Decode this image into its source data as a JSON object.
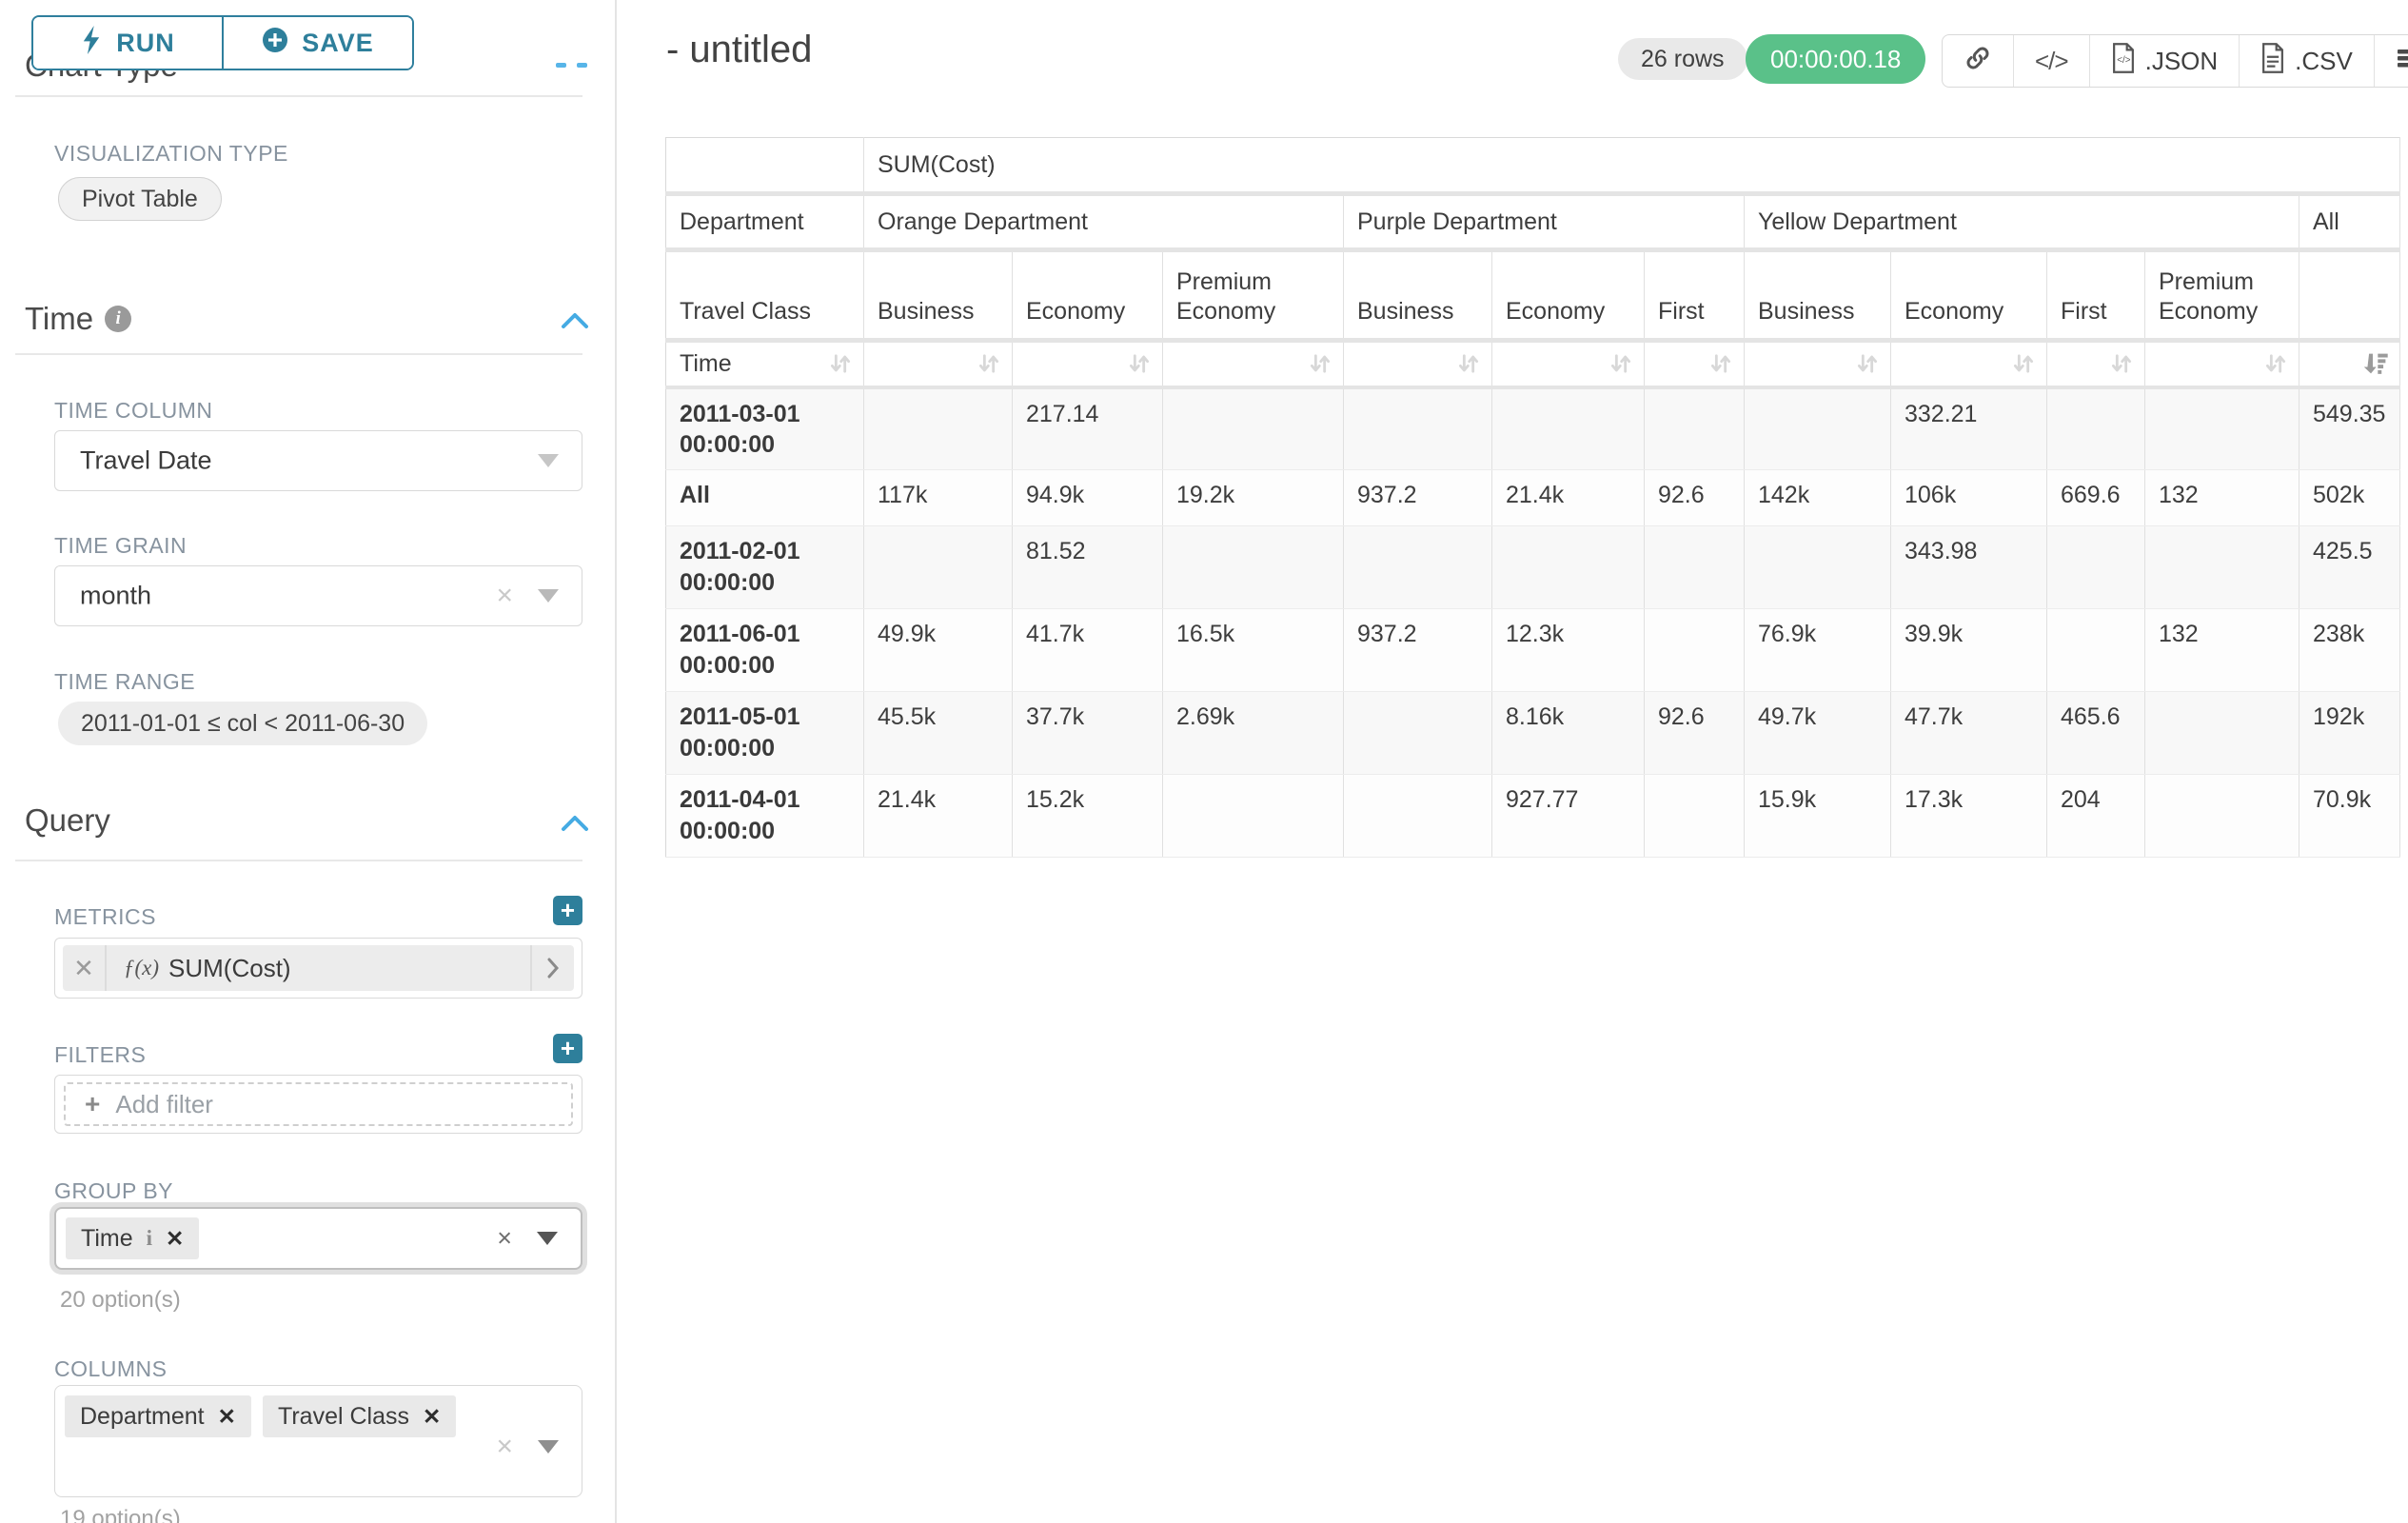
{
  "sidebar": {
    "run_label": "RUN",
    "save_label": "SAVE",
    "chart_type_heading": "Chart Type",
    "viz": {
      "label": "VISUALIZATION TYPE",
      "value": "Pivot Table"
    },
    "time_section": {
      "title": "Time",
      "time_column_label": "TIME COLUMN",
      "time_column_value": "Travel Date",
      "time_grain_label": "TIME GRAIN",
      "time_grain_value": "month",
      "time_range_label": "TIME RANGE",
      "time_range_value": "2011-01-01 ≤ col < 2011-06-30"
    },
    "query_section": {
      "title": "Query",
      "metrics_label": "METRICS",
      "metric_fx": "ƒ(x)",
      "metric_chip": "SUM(Cost)",
      "filters_label": "FILTERS",
      "add_filter_label": "Add filter",
      "group_by_label": "GROUP BY",
      "group_by_chip": "Time",
      "group_by_options": "20 option(s)",
      "columns_label": "COLUMNS",
      "columns_chips": [
        "Department",
        "Travel Class"
      ],
      "columns_options": "19 option(s)"
    }
  },
  "header": {
    "title": "- untitled",
    "row_count": "26 rows",
    "timer": "00:00:00.18",
    "json_label": ".JSON",
    "csv_label": ".CSV"
  },
  "colors": {
    "accent_teal": "#2e7f9b",
    "chevron_blue": "#45abe3",
    "timer_green": "#5ac189"
  },
  "chart_data": {
    "type": "table",
    "metric_header": "SUM(Cost)",
    "row_dim_headers": [
      "Department",
      "Travel Class",
      "Time"
    ],
    "col_groups": [
      {
        "label": "Orange Department",
        "cols": [
          "Business",
          "Economy",
          "Premium Economy"
        ]
      },
      {
        "label": "Purple Department",
        "cols": [
          "Business",
          "Economy",
          "First"
        ]
      },
      {
        "label": "Yellow Department",
        "cols": [
          "Business",
          "Economy",
          "First",
          "Premium Economy"
        ]
      },
      {
        "label": "All",
        "cols": [
          ""
        ]
      }
    ],
    "sorted_column": "All",
    "sort_direction": "descending",
    "rows": [
      {
        "label": "2011-03-01 00:00:00",
        "values": [
          "",
          "217.14",
          "",
          "",
          "",
          "",
          "",
          "332.21",
          "",
          "",
          "549.35"
        ]
      },
      {
        "label": "All",
        "values": [
          "117k",
          "94.9k",
          "19.2k",
          "937.2",
          "21.4k",
          "92.6",
          "142k",
          "106k",
          "669.6",
          "132",
          "502k"
        ]
      },
      {
        "label": "2011-02-01 00:00:00",
        "values": [
          "",
          "81.52",
          "",
          "",
          "",
          "",
          "",
          "343.98",
          "",
          "",
          "425.5"
        ]
      },
      {
        "label": "2011-06-01 00:00:00",
        "values": [
          "49.9k",
          "41.7k",
          "16.5k",
          "937.2",
          "12.3k",
          "",
          "76.9k",
          "39.9k",
          "",
          "132",
          "238k"
        ]
      },
      {
        "label": "2011-05-01 00:00:00",
        "values": [
          "45.5k",
          "37.7k",
          "2.69k",
          "",
          "8.16k",
          "92.6",
          "49.7k",
          "47.7k",
          "465.6",
          "",
          "192k"
        ]
      },
      {
        "label": "2011-04-01 00:00:00",
        "values": [
          "21.4k",
          "15.2k",
          "",
          "",
          "927.77",
          "",
          "15.9k",
          "17.3k",
          "204",
          "",
          "70.9k"
        ]
      }
    ]
  }
}
